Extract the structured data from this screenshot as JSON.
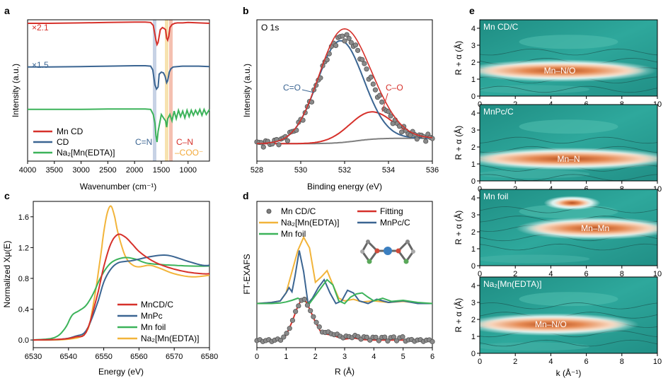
{
  "colors": {
    "red": "#d6312b",
    "blue": "#3b6592",
    "green": "#3cb35a",
    "orange": "#f2b43a",
    "grey": "#7f7f7f",
    "teal": "#2a9c92",
    "text": "#222222"
  },
  "chart_data": [
    {
      "panel": "a",
      "type": "line",
      "xlabel": "Wavenumber (cm⁻¹)",
      "ylabel": "Intensity (a.u.)",
      "xlim": [
        4000,
        600
      ],
      "xticks": [
        "4000",
        "3500",
        "3000",
        "2500",
        "2000",
        "1500",
        "1000"
      ],
      "multipliers": [
        "×2.1",
        "×1.5"
      ],
      "annotations": [
        "C=N",
        "C–N",
        "–COO⁻"
      ],
      "legend": [
        "Mn CD",
        "CD",
        "Na₂[Mn(EDTA)]"
      ],
      "series": [
        {
          "name": "Mn CD",
          "offset": 2.0,
          "x": [
            4000,
            3600,
            3000,
            2500,
            2000,
            1800,
            1700,
            1650,
            1600,
            1580,
            1560,
            1520,
            1480,
            1450,
            1420,
            1400,
            1380,
            1360,
            1340,
            1300,
            1250,
            1200,
            1100,
            1000,
            800,
            600
          ],
          "y": [
            0.45,
            0.45,
            0.46,
            0.47,
            0.48,
            0.48,
            0.47,
            0.4,
            0.05,
            -0.05,
            0.0,
            0.3,
            0.35,
            0.33,
            0.3,
            0.1,
            0.05,
            0.15,
            0.35,
            0.42,
            0.45,
            0.46,
            0.46,
            0.47,
            0.46,
            0.45
          ]
        },
        {
          "name": "CD",
          "offset": 1.0,
          "x": [
            4000,
            3600,
            3000,
            2500,
            2000,
            1800,
            1700,
            1660,
            1620,
            1590,
            1560,
            1540,
            1500,
            1460,
            1430,
            1400,
            1380,
            1350,
            1320,
            1280,
            1200,
            1100,
            1000,
            800,
            600
          ],
          "y": [
            0.42,
            0.42,
            0.43,
            0.44,
            0.45,
            0.45,
            0.44,
            0.35,
            0.0,
            -0.1,
            -0.05,
            0.25,
            0.3,
            0.28,
            0.2,
            0.05,
            0.1,
            0.3,
            0.38,
            0.42,
            0.43,
            0.44,
            0.44,
            0.44,
            0.43
          ]
        },
        {
          "name": "Na₂[Mn(EDTA)]",
          "offset": 0.0,
          "x": [
            4000,
            3600,
            3000,
            2500,
            2000,
            1800,
            1700,
            1650,
            1620,
            1600,
            1580,
            1560,
            1500,
            1450,
            1420,
            1400,
            1380,
            1340,
            1300,
            1260,
            1220,
            1180,
            1140,
            1100,
            1060,
            1020,
            980,
            940,
            900,
            860,
            820,
            780,
            740,
            700,
            660,
            600
          ],
          "y": [
            0.42,
            0.42,
            0.42,
            0.43,
            0.43,
            0.43,
            0.42,
            0.3,
            0.1,
            -0.2,
            -0.35,
            -0.1,
            0.3,
            0.2,
            0.15,
            0.0,
            0.2,
            0.3,
            0.15,
            0.38,
            0.2,
            0.4,
            0.25,
            0.38,
            0.22,
            0.4,
            0.25,
            0.4,
            0.28,
            0.4,
            0.3,
            0.42,
            0.28,
            0.42,
            0.3,
            0.42
          ]
        }
      ]
    },
    {
      "panel": "b",
      "type": "line",
      "title": "O 1s",
      "xlabel": "Binding energy (eV)",
      "ylabel": "Intensity (a.u.)",
      "xlim": [
        528,
        536
      ],
      "xticks": [
        "528",
        "530",
        "532",
        "534",
        "536"
      ],
      "peaks": [
        {
          "name": "C=O",
          "center": 531.8,
          "height": 0.93,
          "width": 1.05
        },
        {
          "name": "C–O",
          "center": 533.2,
          "height": 0.25,
          "width": 1.0
        }
      ],
      "background": [
        0.03,
        0.08
      ],
      "points": {
        "name": "data",
        "x_step": 0.1,
        "count": 81
      }
    },
    {
      "panel": "c",
      "type": "line",
      "xlabel": "Energy (eV)",
      "ylabel": "Normalized Xμ(E)",
      "xlim": [
        6530,
        6580
      ],
      "ylim": [
        -0.1,
        1.8
      ],
      "xticks": [
        "6530",
        "6540",
        "6550",
        "6560",
        "6570",
        "6580"
      ],
      "yticks": [
        "0.0",
        "0.4",
        "0.8",
        "1.2",
        "1.6"
      ],
      "legend": [
        "MnCD/C",
        "MnPc",
        "Mn foil",
        "Na₂[Mn(EDTA)]"
      ],
      "series": [
        {
          "name": "MnCD/C",
          "x": [
            6530,
            6538,
            6542,
            6545,
            6548,
            6550,
            6552,
            6554,
            6556,
            6558,
            6560,
            6563,
            6566,
            6570,
            6574,
            6578,
            6580
          ],
          "y": [
            0.0,
            0.01,
            0.04,
            0.1,
            0.55,
            0.95,
            1.25,
            1.37,
            1.34,
            1.25,
            1.15,
            1.05,
            0.98,
            0.92,
            0.88,
            0.86,
            0.86
          ]
        },
        {
          "name": "MnPc",
          "x": [
            6530,
            6538,
            6542,
            6545,
            6548,
            6550,
            6552,
            6554,
            6556,
            6558,
            6560,
            6563,
            6566,
            6568,
            6570,
            6574,
            6578,
            6580
          ],
          "y": [
            0.0,
            0.01,
            0.05,
            0.12,
            0.45,
            0.75,
            0.92,
            1.0,
            1.02,
            1.03,
            1.05,
            1.08,
            1.1,
            1.1,
            1.08,
            1.02,
            0.97,
            0.97
          ]
        },
        {
          "name": "Mn foil",
          "x": [
            6530,
            6536,
            6539,
            6541,
            6543,
            6545,
            6547,
            6549,
            6551,
            6553,
            6556,
            6559,
            6562,
            6566,
            6570,
            6575,
            6580
          ],
          "y": [
            0.0,
            0.03,
            0.15,
            0.32,
            0.38,
            0.45,
            0.6,
            0.8,
            0.95,
            1.03,
            1.07,
            1.05,
            1.0,
            0.98,
            0.97,
            0.96,
            0.96
          ]
        },
        {
          "name": "Na₂[Mn(EDTA)]",
          "x": [
            6530,
            6540,
            6545,
            6547,
            6549,
            6550,
            6551,
            6552,
            6553,
            6554,
            6556,
            6558,
            6560,
            6563,
            6566,
            6570,
            6575,
            6580
          ],
          "y": [
            0.0,
            0.01,
            0.1,
            0.45,
            1.05,
            1.4,
            1.65,
            1.74,
            1.62,
            1.4,
            1.1,
            0.98,
            0.95,
            0.97,
            0.93,
            0.86,
            0.82,
            0.84
          ]
        }
      ]
    },
    {
      "panel": "d",
      "type": "line",
      "xlabel": "R (Å)",
      "ylabel": "FT-EXAFS",
      "xlim": [
        0,
        6
      ],
      "xticks": [
        "0",
        "1",
        "2",
        "3",
        "4",
        "5",
        "6"
      ],
      "legend": [
        "Mn CD/C",
        "Fitting",
        "Na₂[Mn(EDTA)]",
        "MnPc/C",
        "Mn foil"
      ],
      "series": [
        {
          "name": "Na₂[Mn(EDTA)]",
          "offset": 1.0,
          "x": [
            0,
            0.5,
            0.8,
            1.0,
            1.2,
            1.4,
            1.6,
            1.8,
            2.0,
            2.2,
            2.4,
            2.6,
            2.8,
            3.0,
            3.3,
            3.6,
            4.0,
            4.5,
            5.0,
            5.5,
            6.0
          ],
          "y": [
            0.0,
            0.02,
            0.05,
            0.2,
            0.6,
            1.0,
            1.25,
            1.05,
            0.4,
            0.5,
            0.62,
            0.35,
            0.1,
            0.05,
            0.08,
            0.03,
            0.05,
            0.02,
            0.04,
            0.01,
            0.0
          ]
        },
        {
          "name": "MnPc/C",
          "offset": 1.0,
          "x": [
            0,
            0.5,
            0.8,
            1.0,
            1.1,
            1.2,
            1.3,
            1.45,
            1.6,
            1.75,
            1.9,
            2.1,
            2.3,
            2.5,
            2.7,
            2.9,
            3.1,
            3.3,
            3.5,
            3.8,
            4.1,
            4.5,
            5.0,
            5.5,
            6.0
          ],
          "y": [
            0.0,
            0.02,
            0.05,
            0.2,
            0.3,
            0.22,
            0.5,
            1.0,
            0.6,
            0.0,
            0.1,
            0.3,
            0.45,
            0.2,
            0.0,
            0.05,
            0.25,
            0.2,
            0.05,
            0.0,
            0.08,
            0.02,
            0.05,
            0.0,
            0.0
          ]
        },
        {
          "name": "Mn foil",
          "offset": 1.0,
          "x": [
            0,
            0.5,
            0.8,
            1.0,
            1.2,
            1.4,
            1.6,
            1.8,
            2.0,
            2.2,
            2.4,
            2.6,
            2.8,
            3.0,
            3.2,
            3.4,
            3.6,
            3.8,
            4.0,
            4.3,
            4.6,
            5.0,
            5.5,
            6.0
          ],
          "y": [
            0.0,
            0.0,
            0.01,
            0.03,
            0.06,
            0.1,
            0.05,
            0.0,
            0.15,
            0.3,
            0.45,
            0.35,
            0.05,
            0.0,
            0.12,
            0.18,
            0.2,
            0.12,
            0.05,
            0.1,
            0.04,
            0.06,
            0.02,
            0.0
          ]
        },
        {
          "name": "Fitting",
          "offset": 0.0,
          "x": [
            0,
            0.5,
            0.8,
            1.0,
            1.2,
            1.4,
            1.5,
            1.6,
            1.7,
            1.8,
            2.0,
            2.2,
            2.4,
            2.6,
            2.8,
            3.0,
            3.3,
            3.6,
            4.0,
            5.0,
            6.0
          ],
          "y": [
            0.0,
            0.0,
            0.02,
            0.1,
            0.35,
            0.65,
            0.75,
            0.78,
            0.72,
            0.6,
            0.35,
            0.15,
            0.12,
            0.1,
            0.06,
            0.03,
            0.05,
            0.02,
            0.01,
            0.01,
            0.0
          ]
        }
      ],
      "points": {
        "name": "Mn CD/C",
        "offset": 0.0,
        "count": 60
      }
    },
    {
      "panel": "e",
      "type": "heatmap",
      "xlabel": "k (Å⁻¹)",
      "ylabel": "R + α (Å)",
      "xlim": [
        0,
        10
      ],
      "ylim": [
        0,
        4.5
      ],
      "xticks": [
        "0",
        "2",
        "4",
        "6",
        "8",
        "10"
      ],
      "yticks": [
        "0",
        "1",
        "2",
        "3",
        "4"
      ],
      "maps": [
        {
          "name": "Mn CD/C",
          "feature": "Mn–N/O",
          "ridge_R": 1.5,
          "ridge_k": [
            0,
            9
          ]
        },
        {
          "name": "MnPc/C",
          "feature": "Mn–N",
          "ridge_R": 1.3,
          "ridge_k": [
            0,
            10
          ]
        },
        {
          "name": "Mn foil",
          "feature": "Mn–Mn",
          "ridge_R": 2.2,
          "ridge_k": [
            3,
            10
          ]
        },
        {
          "name": "Na₂[Mn(EDTA)]",
          "feature": "Mn–N/O",
          "ridge_R": 1.7,
          "ridge_k": [
            0,
            8
          ]
        }
      ]
    }
  ],
  "panel_labels": [
    "a",
    "b",
    "c",
    "d",
    "e"
  ]
}
